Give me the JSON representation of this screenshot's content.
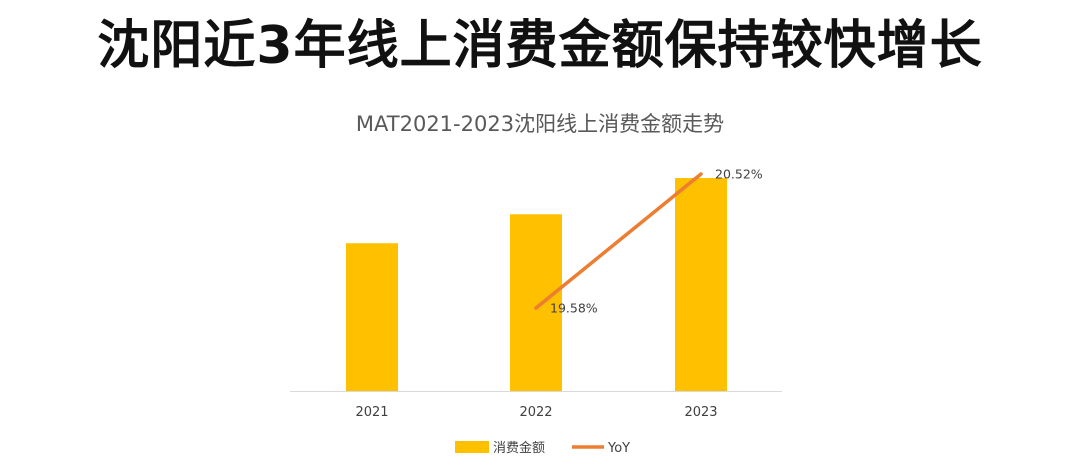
{
  "headline": "沈阳近3年线上消费金额保持较快增长",
  "colors": {
    "bar": "#FFC000",
    "line": "#ED7D31",
    "axis": "#D9D9D9",
    "tick_text": "#404040",
    "title_text": "#595959"
  },
  "chart_data": {
    "type": "bar",
    "title": "MAT2021-2023沈阳线上消费金额走势",
    "xlabel": "",
    "ylabel": "",
    "categories": [
      "2021",
      "2022",
      "2023"
    ],
    "series": [
      {
        "name": "消费金额",
        "type": "bar",
        "values": [
          100,
          119.58,
          144.12
        ]
      },
      {
        "name": "YoY",
        "type": "line",
        "values": [
          null,
          19.58,
          20.52
        ],
        "labels": [
          "",
          "19.58%",
          "20.52%"
        ]
      }
    ],
    "y_axis_visible": false,
    "grid": false,
    "legend": "bottom-center"
  }
}
